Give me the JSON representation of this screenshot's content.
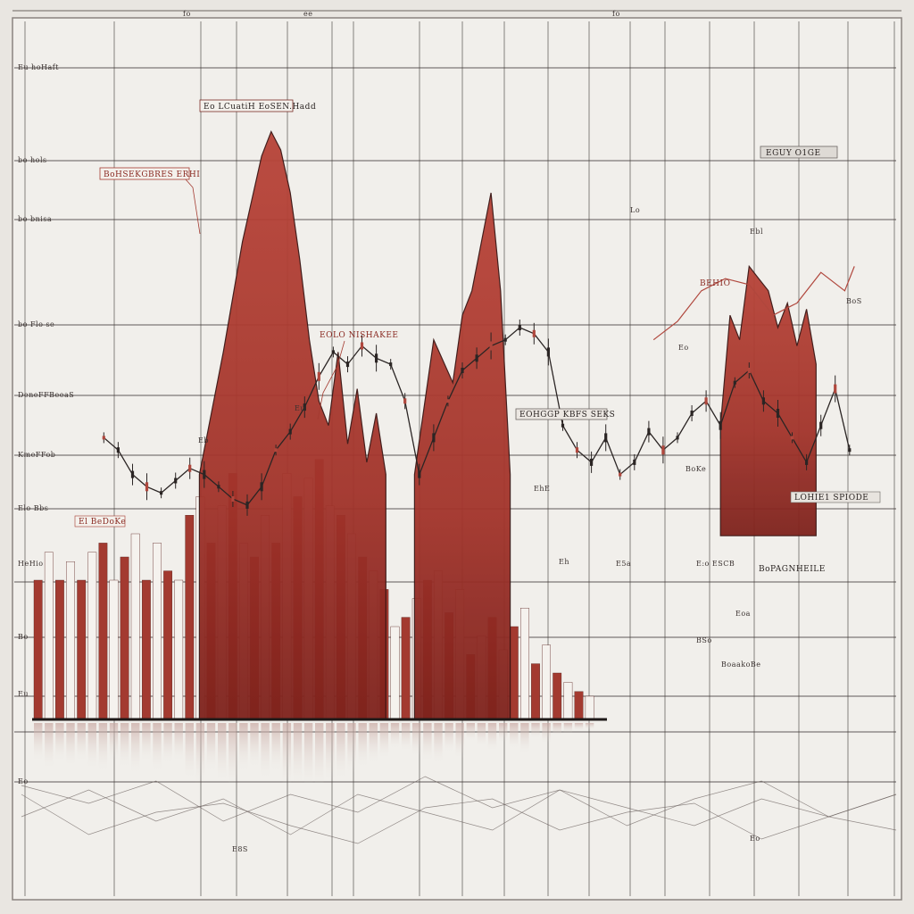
{
  "chart_data": {
    "type": "bar",
    "title": "",
    "xlabel": "",
    "ylabel": "",
    "grid": true,
    "legend": "none",
    "ylim": [
      0,
      100
    ],
    "colors": {
      "background": "#e9e6e1",
      "panel": "#f1efeb",
      "grid": "#3c3634",
      "area_fill": "#a8342b",
      "area_fill_dark": "#7e221c",
      "bar_red": "#a33a30",
      "bar_white": "#f5f2ee",
      "line_dark": "#2b2524",
      "line_red": "#b0473d"
    },
    "area_series": [
      {
        "segment": 1,
        "x": [
          35,
          40,
          44,
          48,
          50,
          52,
          54,
          56,
          58,
          60,
          62,
          64,
          66,
          68,
          70,
          72,
          74
        ],
        "values": [
          40,
          60,
          78,
          92,
          96,
          93,
          86,
          75,
          62,
          52,
          48,
          60,
          45,
          54,
          42,
          50,
          40
        ]
      },
      {
        "segment": 2,
        "x": [
          80,
          84,
          88,
          90,
          92,
          94,
          96,
          98,
          100
        ],
        "values": [
          40,
          62,
          55,
          66,
          70,
          78,
          86,
          70,
          40
        ]
      },
      {
        "segment": 3,
        "x": [
          144,
          146,
          148,
          150,
          152,
          154,
          156,
          158,
          160,
          162,
          164
        ],
        "values": [
          48,
          66,
          62,
          74,
          72,
          70,
          64,
          68,
          61,
          67,
          58
        ]
      }
    ],
    "bars": {
      "values": [
        30,
        36,
        30,
        34,
        30,
        36,
        38,
        30,
        35,
        40,
        30,
        38,
        32,
        30,
        44,
        48,
        38,
        46,
        53,
        38,
        35,
        44,
        38,
        53,
        48,
        52,
        56,
        46,
        44,
        40,
        35,
        32,
        28,
        20,
        22,
        26,
        30,
        32,
        23,
        28,
        14,
        18,
        22,
        15,
        20,
        24,
        12,
        16,
        10,
        8,
        6,
        5
      ]
    },
    "candles": {
      "x": [
        15,
        18,
        21,
        24,
        27,
        30,
        33,
        36,
        39,
        42,
        45,
        48,
        51,
        54,
        57,
        60,
        63,
        66,
        69,
        72,
        75,
        78,
        81,
        84,
        87,
        90,
        93,
        96,
        99,
        102,
        105,
        108,
        111,
        114,
        117,
        120,
        123,
        126,
        129,
        132,
        135,
        138,
        141,
        144,
        147,
        150,
        153,
        156,
        159,
        162,
        165,
        168,
        171
      ],
      "values": [
        46,
        44,
        40,
        38,
        37,
        39,
        41,
        40,
        38,
        36,
        35,
        38,
        44,
        47,
        51,
        56,
        60,
        58,
        61,
        59,
        58,
        52,
        40,
        46,
        52,
        57,
        59,
        61,
        62,
        64,
        63,
        60,
        48,
        44,
        42,
        46,
        40,
        42,
        47,
        44,
        46,
        50,
        52,
        48,
        55,
        57,
        52,
        50,
        46,
        42,
        48,
        54,
        44
      ]
    },
    "red_line": {
      "x": [
        130,
        135,
        140,
        145,
        150,
        155,
        160,
        165,
        170,
        172
      ],
      "values": [
        62,
        65,
        70,
        72,
        71,
        66,
        68,
        73,
        70,
        74
      ]
    },
    "reflection_lines": [
      {
        "values": [
          10,
          14,
          9,
          18,
          12,
          16,
          8,
          15,
          11,
          19,
          13,
          9,
          17,
          12
        ]
      },
      {
        "values": [
          15,
          9,
          16,
          11,
          19,
          10,
          14,
          18,
          9,
          13,
          17,
          11,
          15,
          10
        ]
      },
      {
        "values": [
          8,
          17,
          12,
          10,
          15,
          19,
          11,
          9,
          16,
          12,
          10,
          18,
          13,
          16
        ]
      }
    ]
  },
  "annotations": {
    "top_ticks": [
      "fo",
      "ee",
      "fo"
    ],
    "left_axis": [
      "Eu hoHaft",
      "bo hols",
      "bo bnisa",
      "bo Flo se",
      "DeneFFBeeaS",
      "KmeFFob",
      "Elo Bbs",
      "HeHio",
      "Bo",
      "Eu"
    ],
    "peak_label": "Eo LCuatiH EoSEN.Hadd",
    "left_label": "BoHSEKGBRES ERHI",
    "mid_label": "EOLO NISHAKEE",
    "center_label": "EOHGGP KBFS SEKS",
    "right_top_label": "EGUY O1GE",
    "right_red_label": "BEHIO",
    "right_mid_label": "LOHIE1 SPIODE",
    "right_low_label": "BoPAGNHEILE",
    "bottom_left_label": "El BeDoKe",
    "small_tags": [
      "Eb",
      "Eu",
      "EhE",
      "Eh",
      "E5a",
      "Lo",
      "Ebl",
      "Eo",
      "BoKe",
      "E:o ESCB",
      "BoaakoBe",
      "Eoa",
      "BSo",
      "E8S",
      "Eo",
      "BoS",
      "Eo"
    ]
  }
}
